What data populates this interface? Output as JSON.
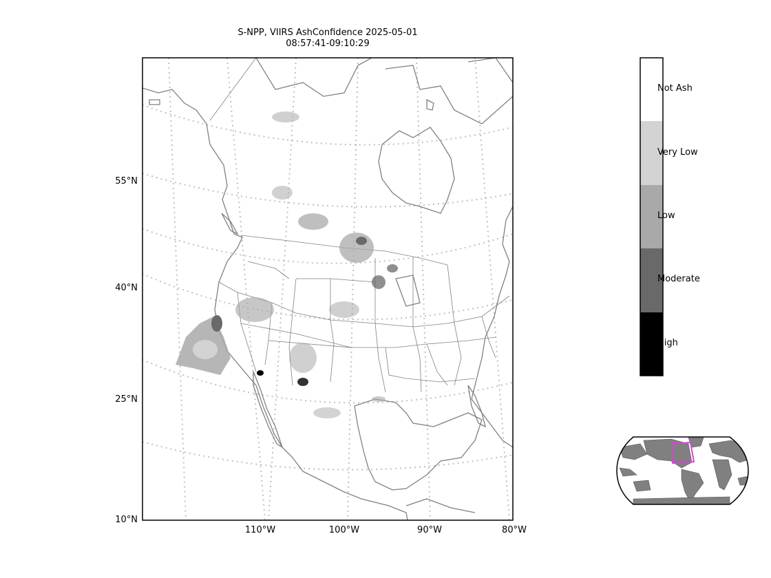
{
  "title": {
    "line1": "S-NPP, VIIRS AshConfidence 2025-05-01",
    "line2": "08:57:41-09:10:29"
  },
  "lat_labels": [
    "55°N",
    "40°N",
    "25°N",
    "10°N"
  ],
  "lon_labels": [
    "110°W",
    "100°W",
    "90°W",
    "80°W"
  ],
  "colorbar": {
    "labels": [
      "Not Ash",
      "Very Low",
      "Low",
      "Moderate",
      "High"
    ],
    "colors": [
      "#ffffff",
      "#d3d3d3",
      "#a9a9a9",
      "#696969",
      "#000000"
    ]
  },
  "colors": {
    "coastline": "#808080",
    "gridlines": "#bfbfbf",
    "overview_land": "#808080",
    "overview_box": "#e040e0"
  }
}
